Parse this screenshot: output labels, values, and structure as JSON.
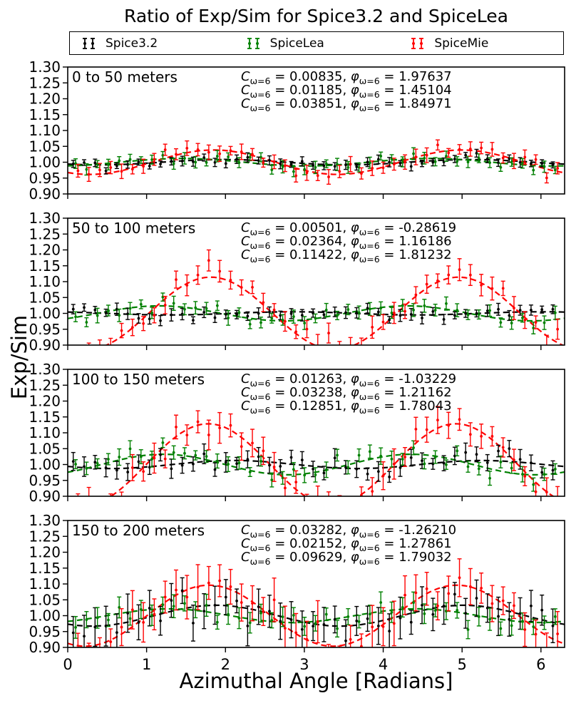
{
  "title": "Ratio of Exp/Sim for Spice3.2 and SpiceLea",
  "axes": {
    "xlabel": "Azimuthal Angle [Radians]",
    "ylabel": "Exp/Sim",
    "xlim": [
      0,
      6.3
    ],
    "ylim": [
      0.9,
      1.3
    ],
    "xticks": [
      "0",
      "1",
      "2",
      "3",
      "4",
      "5",
      "6"
    ],
    "yticks": [
      "0.90",
      "0.95",
      "1.00",
      "1.05",
      "1.10",
      "1.15",
      "1.20",
      "1.25",
      "1.30"
    ],
    "grid": false
  },
  "legend": {
    "position": "top",
    "entries": [
      {
        "label": "Spice3.2",
        "color": "#000000"
      },
      {
        "label": "SpiceLea",
        "color": "#008000"
      },
      {
        "label": "SpiceMie",
        "color": "#ff0000"
      }
    ]
  },
  "strings": {
    "c_sym": "C",
    "phi_sym": "φ",
    "sub": "ω=6",
    "eq": " = ",
    "sep": ", "
  },
  "chart_data": {
    "type": "scatter",
    "style": "errorbar points with dashed sinusoidal fits",
    "model": "Exp/Sim ≈ 1 + C·cos(2(x − φ))",
    "x_points": {
      "n": 45,
      "start": 0.07,
      "step": 0.1382
    },
    "panels": [
      {
        "label": "0 to 50 meters",
        "series": [
          {
            "name": "Spice3.2",
            "color": "#000000",
            "C_str": "0.00835",
            "phi_str": "1.97637",
            "scatter": 0.008,
            "err": 0.012
          },
          {
            "name": "SpiceLea",
            "color": "#008000",
            "C_str": "0.01185",
            "phi_str": "1.45104",
            "scatter": 0.01,
            "err": 0.015
          },
          {
            "name": "SpiceMie",
            "color": "#ff0000",
            "C_str": "0.03851",
            "phi_str": "1.84971",
            "scatter": 0.013,
            "err": 0.019
          }
        ]
      },
      {
        "label": "50 to 100 meters",
        "series": [
          {
            "name": "Spice3.2",
            "color": "#000000",
            "C_str": "0.00501",
            "phi_str": "-0.28619",
            "scatter": 0.01,
            "err": 0.015
          },
          {
            "name": "SpiceLea",
            "color": "#008000",
            "C_str": "0.02364",
            "phi_str": "1.16186",
            "scatter": 0.012,
            "err": 0.018
          },
          {
            "name": "SpiceMie",
            "color": "#ff0000",
            "C_str": "0.11422",
            "phi_str": "1.81232",
            "scatter": 0.022,
            "err": 0.028
          }
        ]
      },
      {
        "label": "100 to 150 meters",
        "series": [
          {
            "name": "Spice3.2",
            "color": "#000000",
            "C_str": "0.01263",
            "phi_str": "-1.03229",
            "scatter": 0.016,
            "err": 0.024
          },
          {
            "name": "SpiceLea",
            "color": "#008000",
            "C_str": "0.03238",
            "phi_str": "1.21162",
            "scatter": 0.014,
            "err": 0.02
          },
          {
            "name": "SpiceMie",
            "color": "#ff0000",
            "C_str": "0.12851",
            "phi_str": "1.78043",
            "scatter": 0.026,
            "err": 0.038
          }
        ]
      },
      {
        "label": "150 to 200 meters",
        "series": [
          {
            "name": "Spice3.2",
            "color": "#000000",
            "C_str": "0.03282",
            "phi_str": "-1.26210",
            "scatter": 0.03,
            "err": 0.052
          },
          {
            "name": "SpiceLea",
            "color": "#008000",
            "C_str": "0.02152",
            "phi_str": "1.27861",
            "scatter": 0.018,
            "err": 0.028
          },
          {
            "name": "SpiceMie",
            "color": "#ff0000",
            "C_str": "0.09629",
            "phi_str": "1.79032",
            "scatter": 0.03,
            "err": 0.056
          }
        ]
      }
    ]
  }
}
